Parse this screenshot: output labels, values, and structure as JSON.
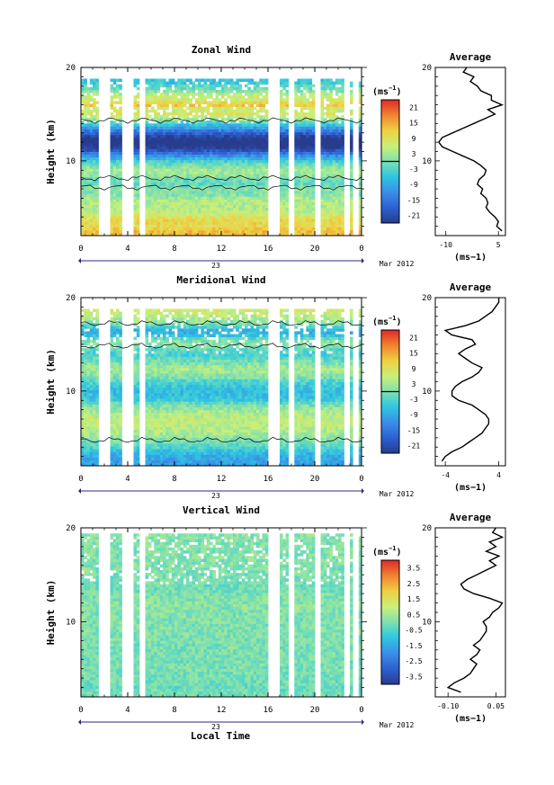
{
  "figure": {
    "date_label": "Mar 2012",
    "day_label": "23",
    "xlabel_bottom": "Local Time",
    "ylabel": "Height (km)",
    "side_title": "Average",
    "unit": "(ms",
    "unit_sup": "−1",
    "unit_close": ")"
  },
  "chart_data": [
    {
      "type": "heatmap",
      "title": "Zonal Wind",
      "x_ticks": [
        "0",
        "4",
        "8",
        "12",
        "16",
        "20",
        "0"
      ],
      "x_range_hours": [
        0,
        24
      ],
      "y_ticks": [
        "10",
        "20"
      ],
      "y_range_km": [
        2,
        20
      ],
      "colorbar_ticks": [
        "21",
        "15",
        "9",
        "3",
        "-3",
        "-9",
        "-15",
        "-21"
      ],
      "colorbar_range": [
        -24,
        24
      ],
      "contour_level": 0,
      "data_gaps_hours": [
        [
          1.5,
          2.6
        ],
        [
          3.5,
          4.4
        ],
        [
          5.0,
          5.6
        ],
        [
          16.0,
          16.9
        ],
        [
          17.8,
          18.3
        ],
        [
          19.9,
          20.4
        ],
        [
          22.6,
          23.0
        ],
        [
          23.3,
          23.7
        ]
      ],
      "profile": {
        "title": "Average",
        "xlabel": "(ms−1)",
        "x_ticks": [
          "-10",
          "5"
        ],
        "x_range": [
          -13,
          7
        ],
        "y_ticks": [
          "10",
          "20"
        ],
        "heights_km": [
          2.5,
          3,
          3.5,
          4,
          4.5,
          5,
          5.5,
          6,
          6.5,
          7,
          7.5,
          8,
          8.5,
          9,
          9.5,
          10,
          10.5,
          11,
          11.5,
          12,
          12.5,
          13,
          13.5,
          14,
          14.5,
          15,
          15.5,
          16,
          16.5,
          17,
          17.5,
          18,
          18.5,
          19,
          19.5,
          20
        ],
        "values": [
          6,
          4.5,
          5,
          4,
          2.5,
          1.5,
          2,
          1.5,
          0,
          0.5,
          -1,
          -0.5,
          1,
          1.5,
          0,
          -2,
          -5,
          -8,
          -11,
          -12,
          -11,
          -8,
          -5,
          -2,
          1,
          4,
          2,
          6,
          3,
          3,
          0,
          -1,
          -3,
          -2,
          -5,
          -4
        ]
      }
    },
    {
      "type": "heatmap",
      "title": "Meridional Wind",
      "x_ticks": [
        "0",
        "4",
        "8",
        "12",
        "16",
        "20",
        "0"
      ],
      "x_range_hours": [
        0,
        24
      ],
      "y_ticks": [
        "10",
        "20"
      ],
      "y_range_km": [
        2,
        20
      ],
      "colorbar_ticks": [
        "21",
        "15",
        "9",
        "3",
        "-3",
        "-9",
        "-15",
        "-21"
      ],
      "colorbar_range": [
        -24,
        24
      ],
      "contour_level": 0,
      "data_gaps_hours": [
        [
          1.5,
          2.6
        ],
        [
          3.5,
          4.4
        ],
        [
          5.0,
          5.6
        ],
        [
          16.0,
          16.9
        ],
        [
          17.8,
          18.3
        ],
        [
          19.9,
          20.4
        ],
        [
          22.6,
          23.0
        ],
        [
          23.3,
          23.7
        ]
      ],
      "profile": {
        "title": "Average",
        "xlabel": "(ms−1)",
        "x_ticks": [
          "-4",
          "4"
        ],
        "x_range": [
          -5.5,
          5
        ],
        "y_ticks": [
          "10",
          "20"
        ],
        "heights_km": [
          2.5,
          3,
          3.5,
          4,
          4.5,
          5,
          5.5,
          6,
          6.5,
          7,
          7.5,
          8,
          8.5,
          9,
          9.5,
          10,
          10.5,
          11,
          11.5,
          12,
          12.5,
          13,
          13.5,
          14,
          14.5,
          15,
          15.5,
          16,
          16.5,
          17,
          17.5,
          18,
          18.5,
          19,
          19.5,
          20
        ],
        "values": [
          -4.5,
          -4,
          -3,
          -1.5,
          -0.5,
          0.5,
          1.5,
          2,
          2.5,
          2.5,
          2,
          1,
          0,
          -2,
          -3,
          -3,
          -2.5,
          -1.5,
          0,
          1,
          1.5,
          0,
          -1,
          -2,
          -1,
          0.5,
          0,
          -3,
          -4,
          -1,
          1,
          2,
          3,
          3.5,
          4,
          4
        ]
      }
    },
    {
      "type": "heatmap",
      "title": "Vertical Wind",
      "xlabel": "Local Time",
      "x_ticks": [
        "0",
        "4",
        "8",
        "12",
        "16",
        "20",
        "0"
      ],
      "x_range_hours": [
        0,
        24
      ],
      "y_ticks": [
        "10",
        "20"
      ],
      "y_range_km": [
        2,
        20
      ],
      "colorbar_ticks": [
        "3.5",
        "2.5",
        "1.5",
        "0.5",
        "-0.5",
        "-1.5",
        "-2.5",
        "-3.5"
      ],
      "colorbar_range": [
        -4,
        4
      ],
      "data_gaps_hours": [
        [
          1.5,
          2.6
        ],
        [
          3.5,
          4.4
        ],
        [
          5.0,
          5.6
        ],
        [
          16.0,
          16.9
        ],
        [
          17.8,
          18.3
        ],
        [
          19.9,
          20.4
        ],
        [
          22.6,
          23.0
        ],
        [
          23.3,
          23.7
        ]
      ],
      "profile": {
        "title": "Average",
        "xlabel": "(ms−1)",
        "x_ticks": [
          "-0.10",
          "0.05"
        ],
        "x_range": [
          -0.14,
          0.08
        ],
        "y_ticks": [
          "10",
          "20"
        ],
        "heights_km": [
          2.5,
          3,
          3.5,
          4,
          4.5,
          5,
          5.5,
          6,
          6.5,
          7,
          7.5,
          8,
          8.5,
          9,
          9.5,
          10,
          10.5,
          11,
          11.5,
          12,
          12.5,
          13,
          13.5,
          14,
          14.5,
          15,
          15.5,
          16,
          16.5,
          17,
          17.5,
          18,
          18.5,
          19,
          19.5,
          20
        ],
        "values": [
          -0.06,
          -0.1,
          -0.08,
          -0.05,
          -0.03,
          -0.02,
          -0.01,
          -0.03,
          -0.01,
          0,
          -0.02,
          0,
          0.01,
          0.02,
          0.02,
          0.01,
          0.03,
          0.04,
          0.06,
          0.07,
          0.03,
          -0.02,
          -0.05,
          -0.06,
          -0.04,
          -0.01,
          0.02,
          0.05,
          0.03,
          0.06,
          0.02,
          0.05,
          0.03,
          0.07,
          0.04,
          0.05
        ]
      }
    }
  ]
}
